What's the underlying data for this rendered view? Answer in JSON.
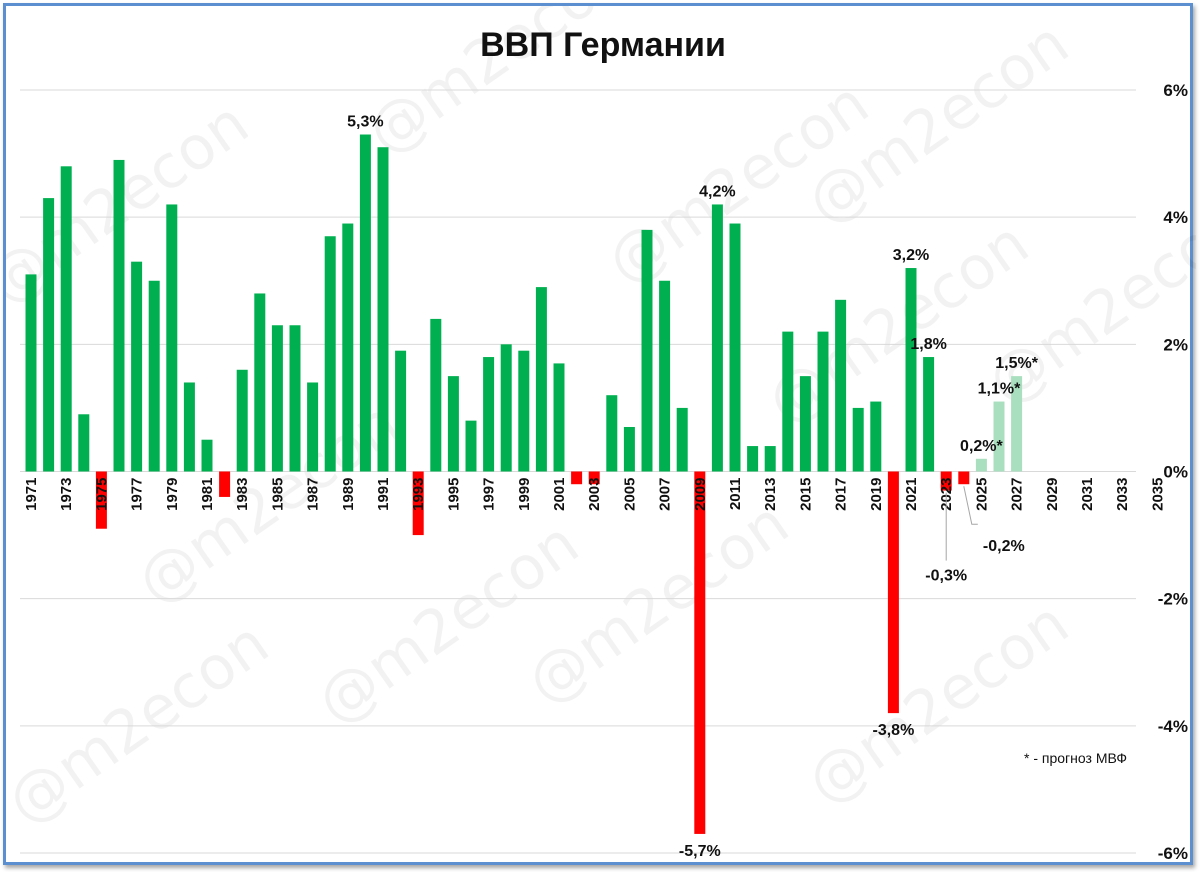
{
  "chart_data": {
    "type": "bar",
    "title": "ВВП Германии",
    "ylim": [
      -6,
      6
    ],
    "y_ticks": [
      6,
      4,
      2,
      0,
      -2,
      -4,
      -6
    ],
    "y_tick_labels": [
      "6%",
      "4%",
      "2%",
      "0%",
      "-2%",
      "-4%",
      "-6%"
    ],
    "y_axis_position": "right",
    "grid": true,
    "x_range": [
      1971,
      2036
    ],
    "x_tick_labels": [
      "1971",
      "1973",
      "1975",
      "1977",
      "1979",
      "1981",
      "1983",
      "1985",
      "1987",
      "1989",
      "1991",
      "1993",
      "1995",
      "1997",
      "1999",
      "2001",
      "2003",
      "2005",
      "2007",
      "2009",
      "2011",
      "2013",
      "2015",
      "2017",
      "2019",
      "2021",
      "2023",
      "2025",
      "2027",
      "2029",
      "2031",
      "2033",
      "2035"
    ],
    "colors": {
      "positive": "#00b050",
      "negative": "#ff0000",
      "forecast": "#a9dfbf",
      "grid": "#d9d9d9"
    },
    "categories": [
      1971,
      1972,
      1973,
      1974,
      1975,
      1976,
      1977,
      1978,
      1979,
      1980,
      1981,
      1982,
      1983,
      1984,
      1985,
      1986,
      1987,
      1988,
      1989,
      1990,
      1991,
      1992,
      1993,
      1994,
      1995,
      1996,
      1997,
      1998,
      1999,
      2000,
      2001,
      2002,
      2003,
      2004,
      2005,
      2006,
      2007,
      2008,
      2009,
      2010,
      2011,
      2012,
      2013,
      2014,
      2015,
      2016,
      2017,
      2018,
      2019,
      2020,
      2021,
      2022,
      2023,
      2024,
      2025,
      2026,
      2027
    ],
    "values": [
      3.1,
      4.3,
      4.8,
      0.9,
      -0.9,
      4.9,
      3.3,
      3.0,
      4.2,
      1.4,
      0.5,
      -0.4,
      1.6,
      2.8,
      2.3,
      2.3,
      1.4,
      3.7,
      3.9,
      5.3,
      5.1,
      1.9,
      -1.0,
      2.4,
      1.5,
      0.8,
      1.8,
      2.0,
      1.9,
      2.9,
      1.7,
      -0.2,
      -0.2,
      1.2,
      0.7,
      3.8,
      3.0,
      1.0,
      -5.7,
      4.2,
      3.9,
      0.4,
      0.4,
      2.2,
      1.5,
      2.2,
      2.7,
      1.0,
      1.1,
      -3.8,
      3.2,
      1.8,
      -0.3,
      -0.2,
      0.2,
      1.1,
      1.5
    ],
    "forecast_from": 2025,
    "data_labels": [
      {
        "year": 1990,
        "text": "5,3%",
        "place": "above"
      },
      {
        "year": 2009,
        "text": "-5,7%",
        "place": "below"
      },
      {
        "year": 2010,
        "text": "4,2%",
        "place": "above"
      },
      {
        "year": 2020,
        "text": "-3,8%",
        "place": "below"
      },
      {
        "year": 2021,
        "text": "3,2%",
        "place": "above"
      },
      {
        "year": 2022,
        "text": "1,8%",
        "place": "above"
      },
      {
        "year": 2023,
        "text": "-0,3%",
        "place": "callout-below"
      },
      {
        "year": 2024,
        "text": "-0,2%",
        "place": "callout-below-right"
      },
      {
        "year": 2025,
        "text": "0,2%*",
        "place": "above"
      },
      {
        "year": 2026,
        "text": "1,1%*",
        "place": "above"
      },
      {
        "year": 2027,
        "text": "1,5%*",
        "place": "above"
      }
    ],
    "note": "* - прогноз МВФ"
  },
  "watermark": "@m2econ"
}
